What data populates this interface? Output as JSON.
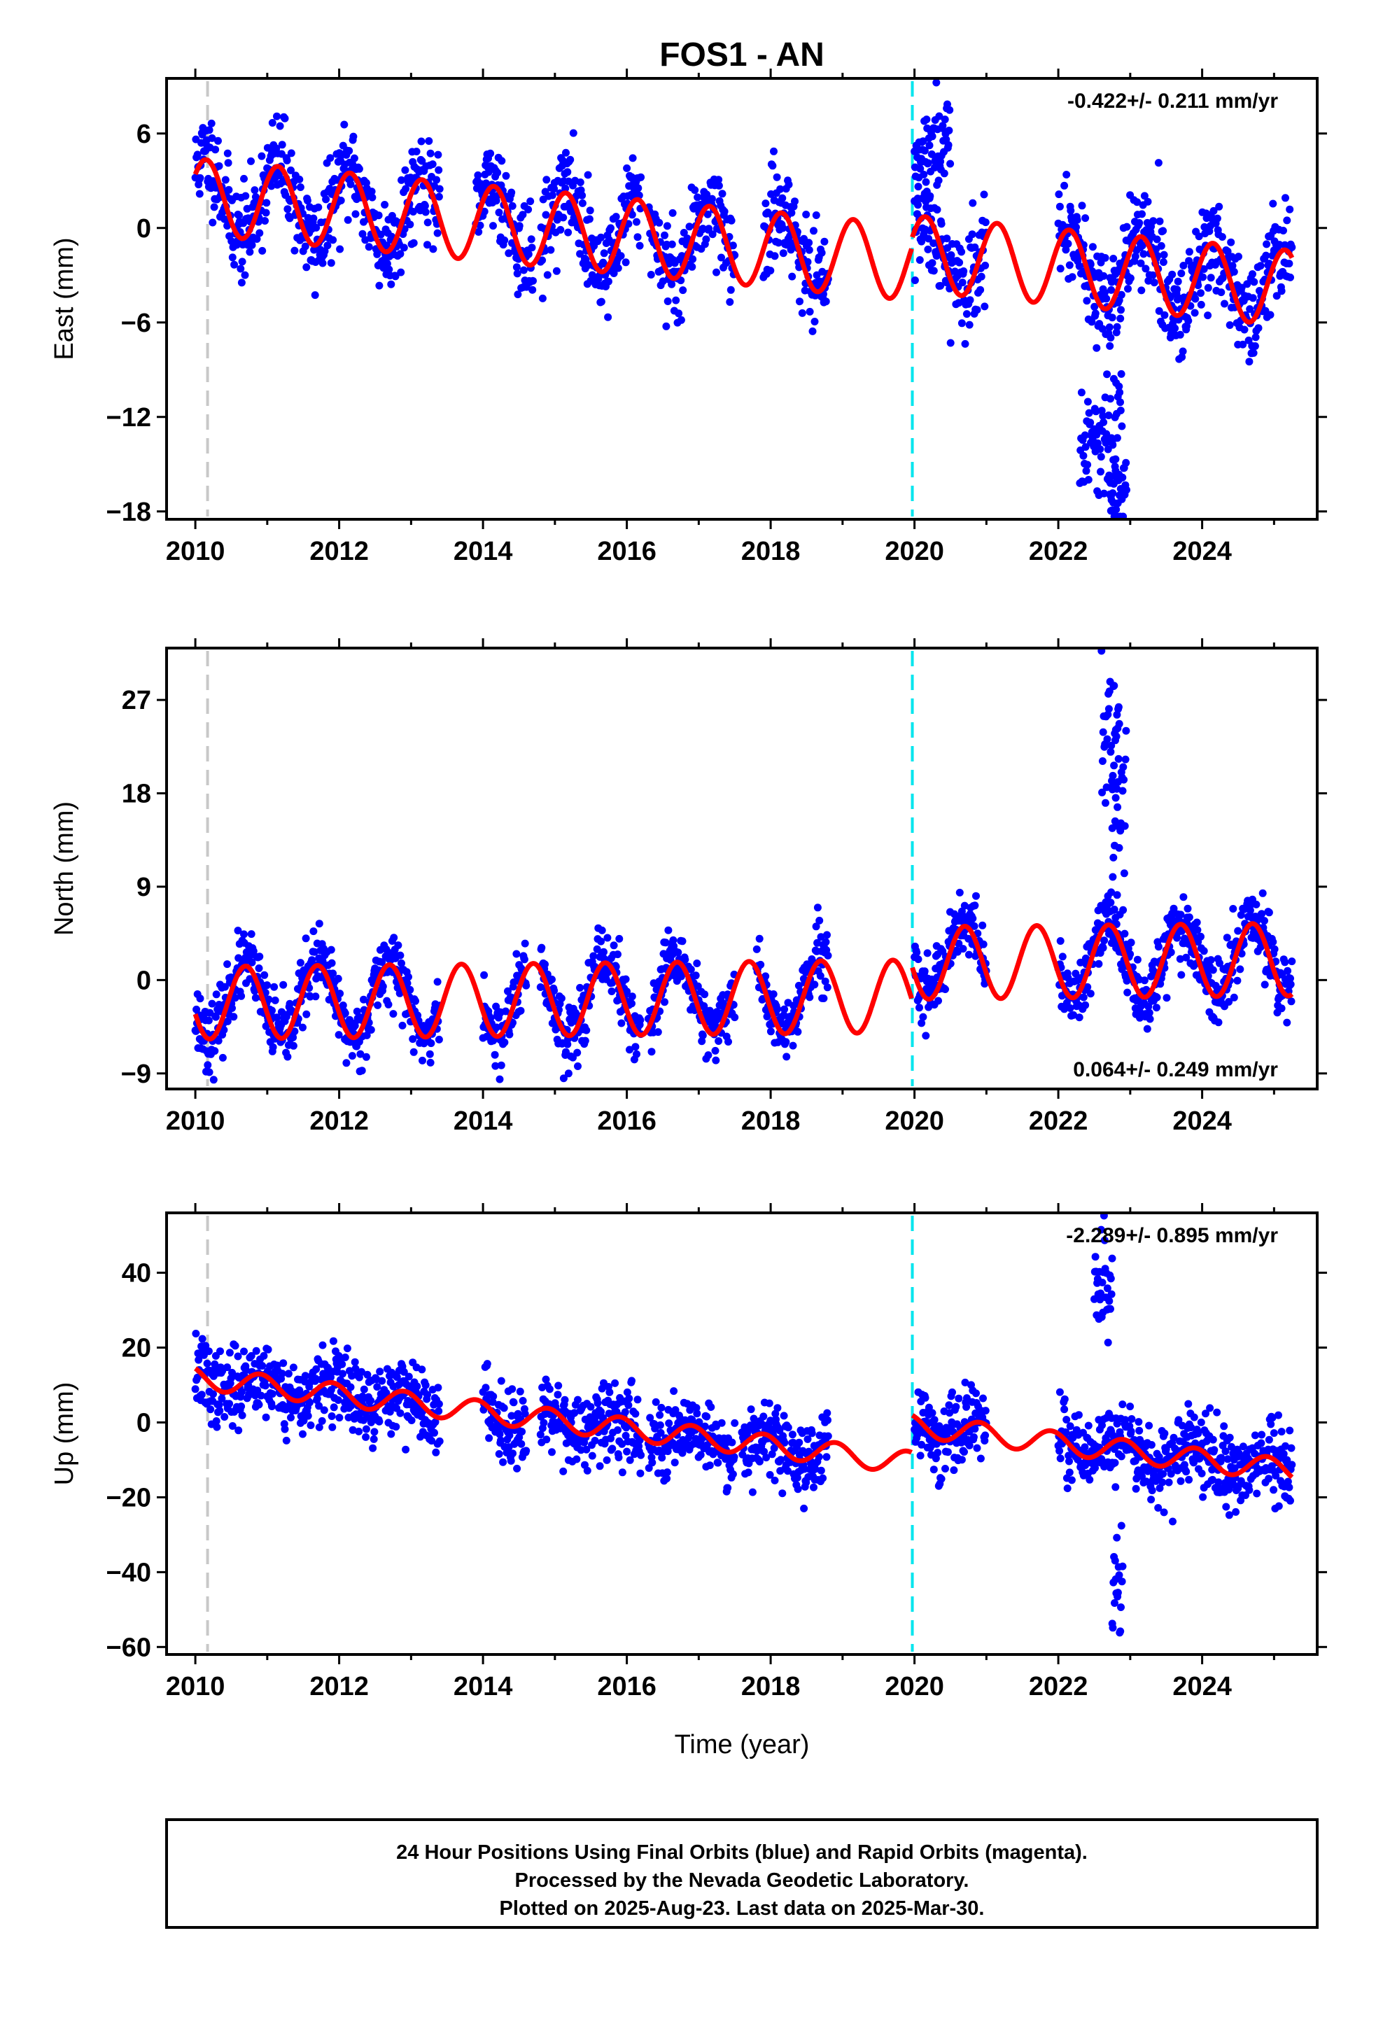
{
  "chart_data": {
    "type": "scatter",
    "title": "FOS1 - AN",
    "xlabel": "Time (year)",
    "xlim": [
      2009.6,
      2025.6
    ],
    "x_ticks": [
      "2010",
      "2012",
      "2014",
      "2016",
      "2018",
      "2020",
      "2022",
      "2024"
    ],
    "grid": false,
    "series_colors": {
      "observed": "#0000ff",
      "model": "#ff0000",
      "event_2010": "#c8c8c8",
      "event_2020": "#00e5ee"
    },
    "event_lines": [
      2010.17,
      2019.97
    ],
    "panels": [
      {
        "name": "east",
        "ylabel": "East (mm)",
        "ylim": [
          -18.5,
          9.5
        ],
        "y_ticks": [
          6,
          0,
          -6,
          -12,
          -18
        ],
        "rate_text": "-0.422+/- 0.211 mm/yr",
        "rate_position": "top-right",
        "observed": {
          "seasonal_amp": 2.4,
          "phase": 0.1,
          "trend": -0.422,
          "base": 2.2,
          "noise": 1.5,
          "seed": 11,
          "segments": [
            [
              2010.0,
              2013.4
            ],
            [
              2013.9,
              2014.7
            ],
            [
              2014.8,
              2016.2
            ],
            [
              2016.3,
              2017.5
            ],
            [
              2017.9,
              2018.8
            ],
            [
              2020.0,
              2021.0
            ],
            [
              2022.0,
              2025.25
            ]
          ]
        },
        "model": {
          "seasonal_amp": 2.4,
          "phase": 0.1,
          "trend": -0.422,
          "base": 2.0,
          "jump_2020": 0.6
        },
        "anomalies": [
          {
            "start": 2020.0,
            "end": 2020.5,
            "center": 5.0,
            "spread": 1.4
          },
          {
            "start": 2022.3,
            "end": 2022.9,
            "center": -13.0,
            "spread": 2.2
          },
          {
            "start": 2022.7,
            "end": 2022.95,
            "center": -16.5,
            "spread": 1.2
          }
        ]
      },
      {
        "name": "north",
        "ylabel": "North (mm)",
        "ylim": [
          -10.5,
          32
        ],
        "y_ticks": [
          27,
          18,
          9,
          0,
          -9
        ],
        "rate_text": "0.064+/- 0.249 mm/yr",
        "rate_position": "bottom-right",
        "observed": {
          "seasonal_amp": 3.5,
          "phase": 0.55,
          "trend": 0.064,
          "base": -2.0,
          "noise": 1.6,
          "seed": 23,
          "segments": [
            [
              2010.0,
              2013.4
            ],
            [
              2014.0,
              2014.6
            ],
            [
              2014.8,
              2016.2
            ],
            [
              2016.3,
              2017.5
            ],
            [
              2017.8,
              2018.8
            ],
            [
              2020.0,
              2021.0
            ],
            [
              2022.0,
              2025.25
            ]
          ]
        },
        "model": {
          "seasonal_amp": 3.5,
          "phase": 0.55,
          "trend": 0.064,
          "base": -2.2,
          "jump_2020": 3.2
        },
        "anomalies": [
          {
            "start": 2022.6,
            "end": 2022.85,
            "center": 24.0,
            "spread": 3.0
          },
          {
            "start": 2022.75,
            "end": 2022.95,
            "center": 16.0,
            "spread": 4.0
          }
        ]
      },
      {
        "name": "up",
        "ylabel": "Up (mm)",
        "ylim": [
          -62,
          56
        ],
        "y_ticks": [
          40,
          20,
          0,
          -20,
          -40,
          -60
        ],
        "rate_text": "-2.289+/- 0.895 mm/yr",
        "rate_position": "top-right",
        "observed": {
          "seasonal_amp": 3.0,
          "phase": 0.35,
          "trend": -2.289,
          "base": 12.0,
          "noise": 5.0,
          "seed": 37,
          "segments": [
            [
              2010.0,
              2013.4
            ],
            [
              2014.0,
              2014.6
            ],
            [
              2014.8,
              2016.2
            ],
            [
              2016.3,
              2017.5
            ],
            [
              2017.6,
              2018.8
            ],
            [
              2020.0,
              2021.0
            ],
            [
              2022.0,
              2025.25
            ]
          ]
        },
        "model": {
          "seasonal_amp": 3.0,
          "phase": 0.35,
          "trend": -2.289,
          "base": 12.0,
          "jump_2020": 10.0
        },
        "anomalies": [
          {
            "start": 2022.5,
            "end": 2022.75,
            "center": 38.0,
            "spread": 7.0
          },
          {
            "start": 2022.75,
            "end": 2022.9,
            "center": -45.0,
            "spread": 9.0
          }
        ]
      }
    ]
  },
  "footer": {
    "line1": "24 Hour Positions Using Final Orbits (blue) and Rapid Orbits (magenta).",
    "line2": "Processed by the Nevada Geodetic Laboratory.",
    "line3": "Plotted on 2025-Aug-23. Last data on 2025-Mar-30."
  }
}
